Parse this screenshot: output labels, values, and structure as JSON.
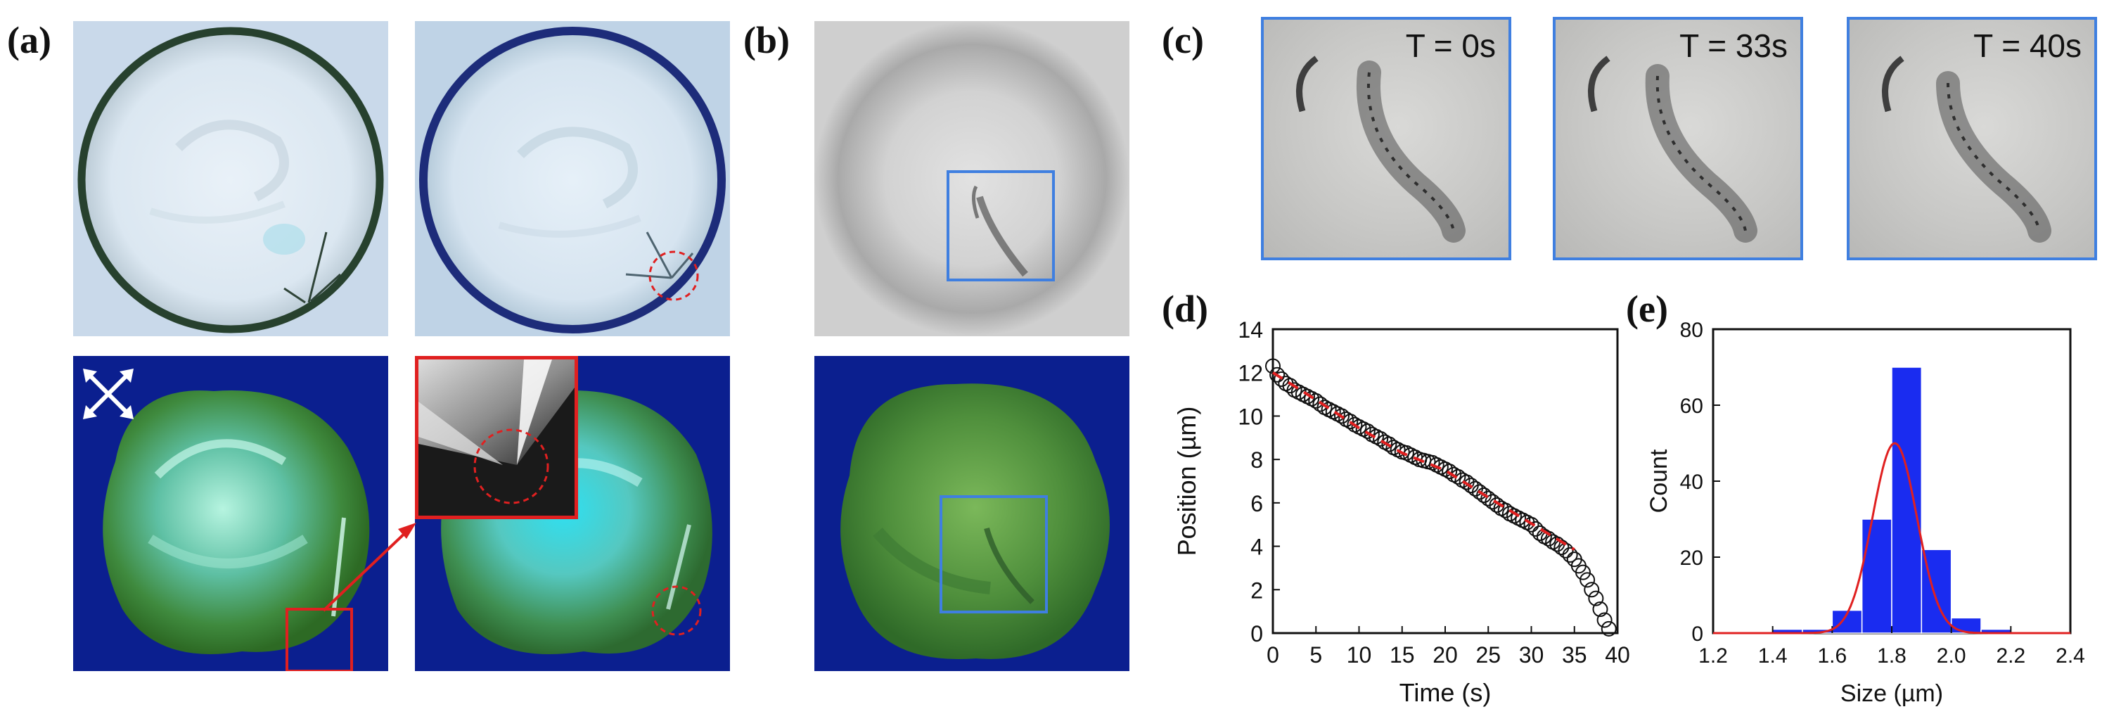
{
  "panels": {
    "a": {
      "label": "(a)"
    },
    "b": {
      "label": "(b)"
    },
    "c": {
      "label": "(c)",
      "time_labels": [
        "T = 0s",
        "T = 33s",
        "T = 40s"
      ]
    },
    "d": {
      "label": "(d)"
    },
    "e": {
      "label": "(e)"
    }
  },
  "colors": {
    "accent_red": "#e02020",
    "frame_blue": "#3f7fe0",
    "pol_background": "#0b1f8f",
    "histogram_bar": "#1a2cf0"
  },
  "icons": [
    "crossed-polarizers-icon"
  ],
  "chart_data": [
    {
      "id": "d",
      "type": "scatter",
      "xlabel": "Time (s)",
      "ylabel": "Position (µm)",
      "xlim": [
        0,
        40
      ],
      "ylim": [
        0,
        14
      ],
      "xticks": [
        0,
        5,
        10,
        15,
        20,
        25,
        30,
        35,
        40
      ],
      "yticks": [
        0,
        2,
        4,
        6,
        8,
        10,
        12,
        14
      ],
      "series": [
        {
          "marker": "open-circle",
          "x": [
            0,
            0.5,
            1,
            1.5,
            2,
            2.5,
            3,
            3.5,
            4,
            4.5,
            5,
            5.5,
            6,
            6.5,
            7,
            7.5,
            8,
            8.5,
            9,
            9.5,
            10,
            10.5,
            11,
            11.5,
            12,
            12.5,
            13,
            13.5,
            14,
            14.5,
            15,
            15.5,
            16,
            16.5,
            17,
            17.5,
            18,
            18.5,
            19,
            19.5,
            20,
            20.5,
            21,
            21.5,
            22,
            22.5,
            23,
            23.5,
            24,
            24.5,
            25,
            25.5,
            26,
            26.5,
            27,
            27.5,
            28,
            28.5,
            29,
            29.5,
            30,
            30.5,
            31,
            31.5,
            32,
            32.5,
            33,
            33.5,
            34,
            34.5,
            35,
            35.5,
            36,
            36.5,
            37,
            37.5,
            38,
            38.5,
            39
          ],
          "y": [
            12.3,
            11.9,
            11.7,
            11.5,
            11.4,
            11.2,
            11.1,
            11.0,
            10.9,
            10.8,
            10.7,
            10.55,
            10.4,
            10.3,
            10.2,
            10.1,
            10.0,
            9.85,
            9.75,
            9.6,
            9.5,
            9.4,
            9.3,
            9.15,
            9.05,
            8.95,
            8.8,
            8.7,
            8.55,
            8.45,
            8.35,
            8.3,
            8.2,
            8.1,
            8.0,
            7.95,
            7.9,
            7.85,
            7.75,
            7.65,
            7.55,
            7.45,
            7.3,
            7.2,
            7.05,
            6.95,
            6.8,
            6.65,
            6.5,
            6.35,
            6.2,
            6.05,
            5.9,
            5.75,
            5.65,
            5.5,
            5.4,
            5.3,
            5.2,
            5.1,
            5.0,
            4.8,
            4.6,
            4.45,
            4.35,
            4.2,
            4.1,
            3.95,
            3.8,
            3.6,
            3.4,
            3.1,
            2.8,
            2.45,
            2.0,
            1.6,
            1.1,
            0.6,
            0.2
          ]
        },
        {
          "marker": "dashed-fit",
          "x": [
            0,
            5,
            10,
            15,
            20,
            25,
            30,
            35
          ],
          "y": [
            12.0,
            10.75,
            9.45,
            8.3,
            7.5,
            6.25,
            5.05,
            3.85
          ]
        }
      ]
    },
    {
      "id": "e",
      "type": "bar",
      "xlabel": "Size (µm)",
      "ylabel": "Count",
      "xlim": [
        1.2,
        2.4
      ],
      "ylim": [
        0,
        80
      ],
      "xticks": [
        1.2,
        1.4,
        1.6,
        1.8,
        2.0,
        2.2,
        2.4
      ],
      "yticks": [
        0,
        20,
        40,
        60,
        80
      ],
      "bin_centers": [
        1.45,
        1.55,
        1.65,
        1.75,
        1.85,
        1.95,
        2.05,
        2.15
      ],
      "values": [
        1,
        1,
        6,
        30,
        70,
        22,
        4,
        1
      ],
      "fit": {
        "type": "gaussian",
        "mean": 1.81,
        "sigma": 0.075,
        "peak": 50
      }
    }
  ]
}
